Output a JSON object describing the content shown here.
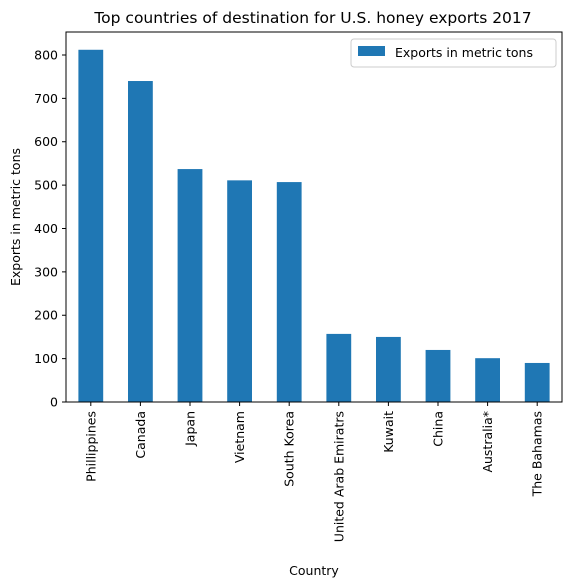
{
  "chart_data": {
    "type": "bar",
    "title": "Top countries of destination for U.S. honey exports 2017",
    "xlabel": "Country",
    "ylabel": "Exports in metric tons",
    "categories": [
      "Phillippines",
      "Canada",
      "Japan",
      "Vietnam",
      "South Korea",
      "United Arab Emiratrs",
      "Kuwait",
      "China",
      "Australia*",
      "The Bahamas"
    ],
    "series": [
      {
        "name": "Exports in metric tons",
        "values": [
          812,
          740,
          537,
          511,
          507,
          157,
          150,
          120,
          101,
          90
        ]
      }
    ],
    "ylim": [
      0,
      853
    ],
    "yticks": [
      0,
      100,
      200,
      300,
      400,
      500,
      600,
      700,
      800
    ],
    "legend_position": "top-right",
    "grid": false,
    "colors": {
      "bar": "#1f77b4"
    }
  }
}
